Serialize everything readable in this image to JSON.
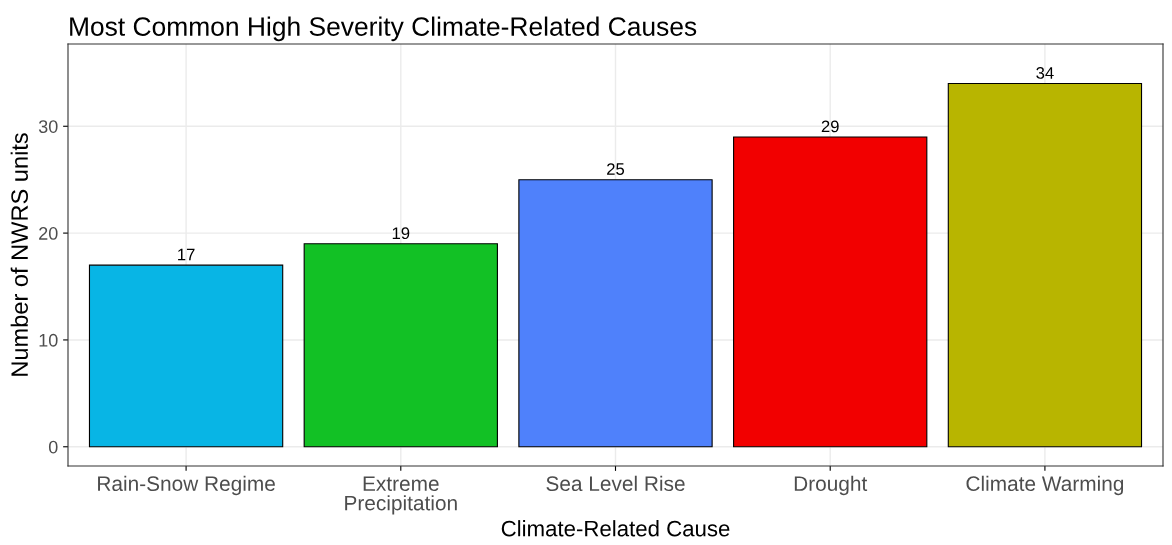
{
  "chart_data": {
    "type": "bar",
    "title": "Most Common High Severity Climate-Related Causes",
    "xlabel": "Climate-Related Cause",
    "ylabel": "Number of NWRS units",
    "categories": [
      "Rain-Snow Regime",
      "Extreme\nPrecipitation",
      "Sea Level Rise",
      "Drought",
      "Climate Warming"
    ],
    "values": [
      17,
      19,
      25,
      29,
      34
    ],
    "colors": [
      "#08b5e5",
      "#12c125",
      "#4f81fb",
      "#f20000",
      "#b8b500"
    ],
    "ylim": [
      -1.8,
      37.7
    ],
    "yticks": [
      0,
      10,
      20,
      30
    ],
    "grid": true,
    "data_labels": true,
    "legend": false
  }
}
